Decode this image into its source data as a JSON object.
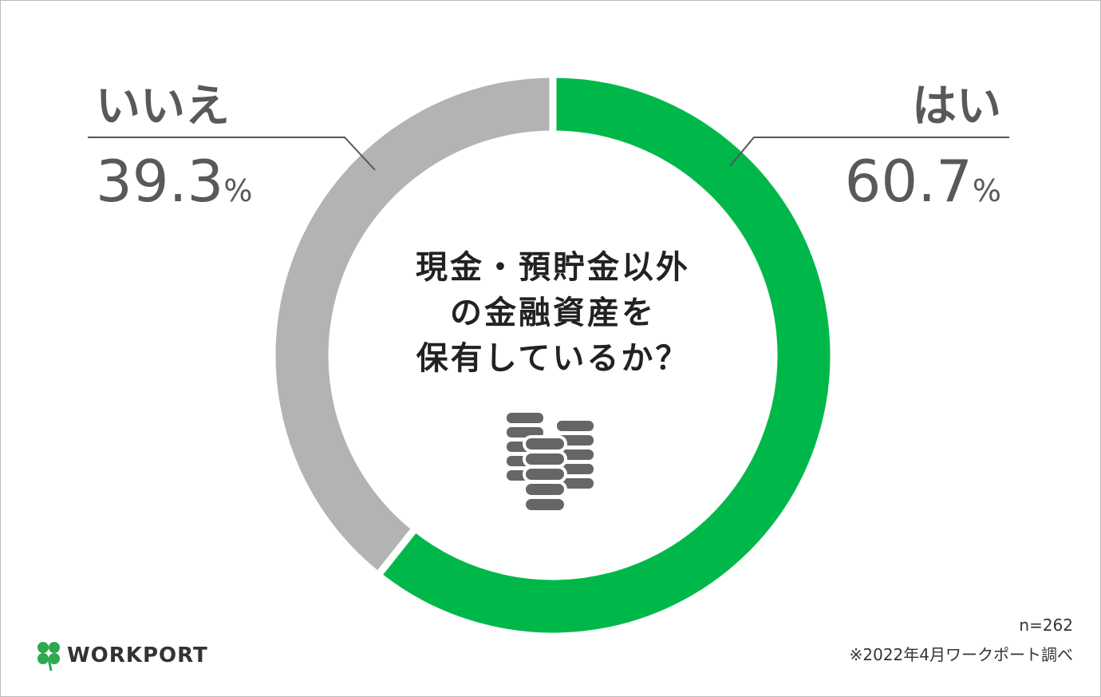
{
  "chart_data": {
    "type": "donut",
    "title": [
      "現金・預貯金以外",
      "の金融資産を",
      "保有しているか？"
    ],
    "categories": [
      "はい",
      "いいえ"
    ],
    "values": [
      60.7,
      39.3
    ],
    "value_labels": [
      "60.7%",
      "39.3%"
    ],
    "colors": [
      "#00b84a",
      "#b3b3b3"
    ],
    "note": "n=262",
    "source": "※2022年4月ワークポート調べ"
  },
  "logo": "WORKPORT"
}
